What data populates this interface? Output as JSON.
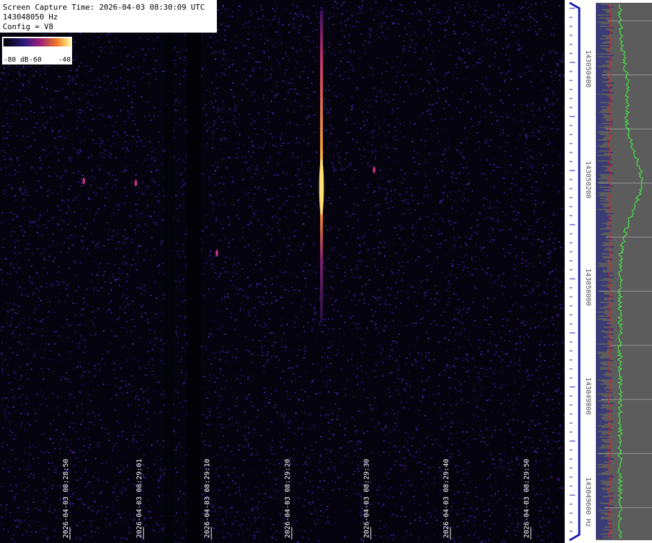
{
  "header": {
    "lines": [
      "Screen Capture Time: 2026-04-03 08:30:09 UTC",
      "143048050 Hz",
      "Config = V8"
    ]
  },
  "colorbar": {
    "labels": [
      "-80 dB",
      "-60",
      "-40"
    ]
  },
  "time_axis": {
    "labels": [
      "2026-04-03 08:28:50",
      "2026-04-03 08:29:01",
      "2026-04-03 08:29:10",
      "2026-04-03 08:29:20",
      "2026-04-03 08:29:30",
      "2026-04-03 08:29:40",
      "2026-04-03 08:29:50"
    ]
  },
  "frequency_axis": {
    "labels": [
      "143050400",
      "143050200",
      "143050000",
      "143049800",
      "143049600 Hz"
    ]
  }
}
